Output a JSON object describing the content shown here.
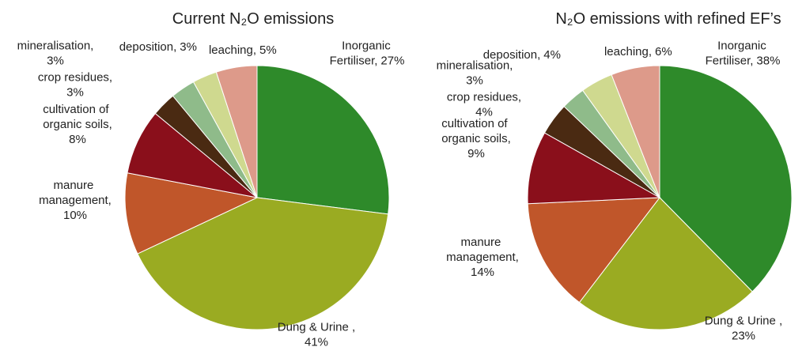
{
  "chart_data": [
    {
      "type": "pie",
      "title": "Current N₂O emissions",
      "categories": [
        "Inorganic Fertiliser,",
        "Dung & Urine ,",
        "manure management,",
        "cultivation of organic soils,",
        "crop residues,",
        "mineralisation,",
        "deposition,",
        "leaching,"
      ],
      "values": [
        27,
        41,
        10,
        8,
        3,
        3,
        3,
        5
      ],
      "value_labels": [
        "27%",
        "41%",
        "10%",
        "8%",
        "3%",
        "3%",
        "3%",
        "5%"
      ],
      "colors": [
        "#2e8a2a",
        "#9aab22",
        "#c0562a",
        "#8a0f1b",
        "#4a2a12",
        "#8fbb8a",
        "#cfd98f",
        "#dd9a8a"
      ]
    },
    {
      "type": "pie",
      "title": "N₂O emissions with refined EF’s",
      "categories": [
        "Inorganic Fertiliser,",
        "Dung & Urine ,",
        "manure management,",
        "cultivation of organic soils,",
        "crop residues,",
        "mineralisation,",
        "deposition,",
        "leaching,"
      ],
      "values": [
        38,
        23,
        14,
        9,
        4,
        3,
        4,
        6
      ],
      "value_labels": [
        "38%",
        "23%",
        "14%",
        "9%",
        "4%",
        "3%",
        "4%",
        "6%"
      ],
      "colors": [
        "#2e8a2a",
        "#9aab22",
        "#c0562a",
        "#8a0f1b",
        "#4a2a12",
        "#8fbb8a",
        "#cfd98f",
        "#dd9a8a"
      ]
    }
  ]
}
